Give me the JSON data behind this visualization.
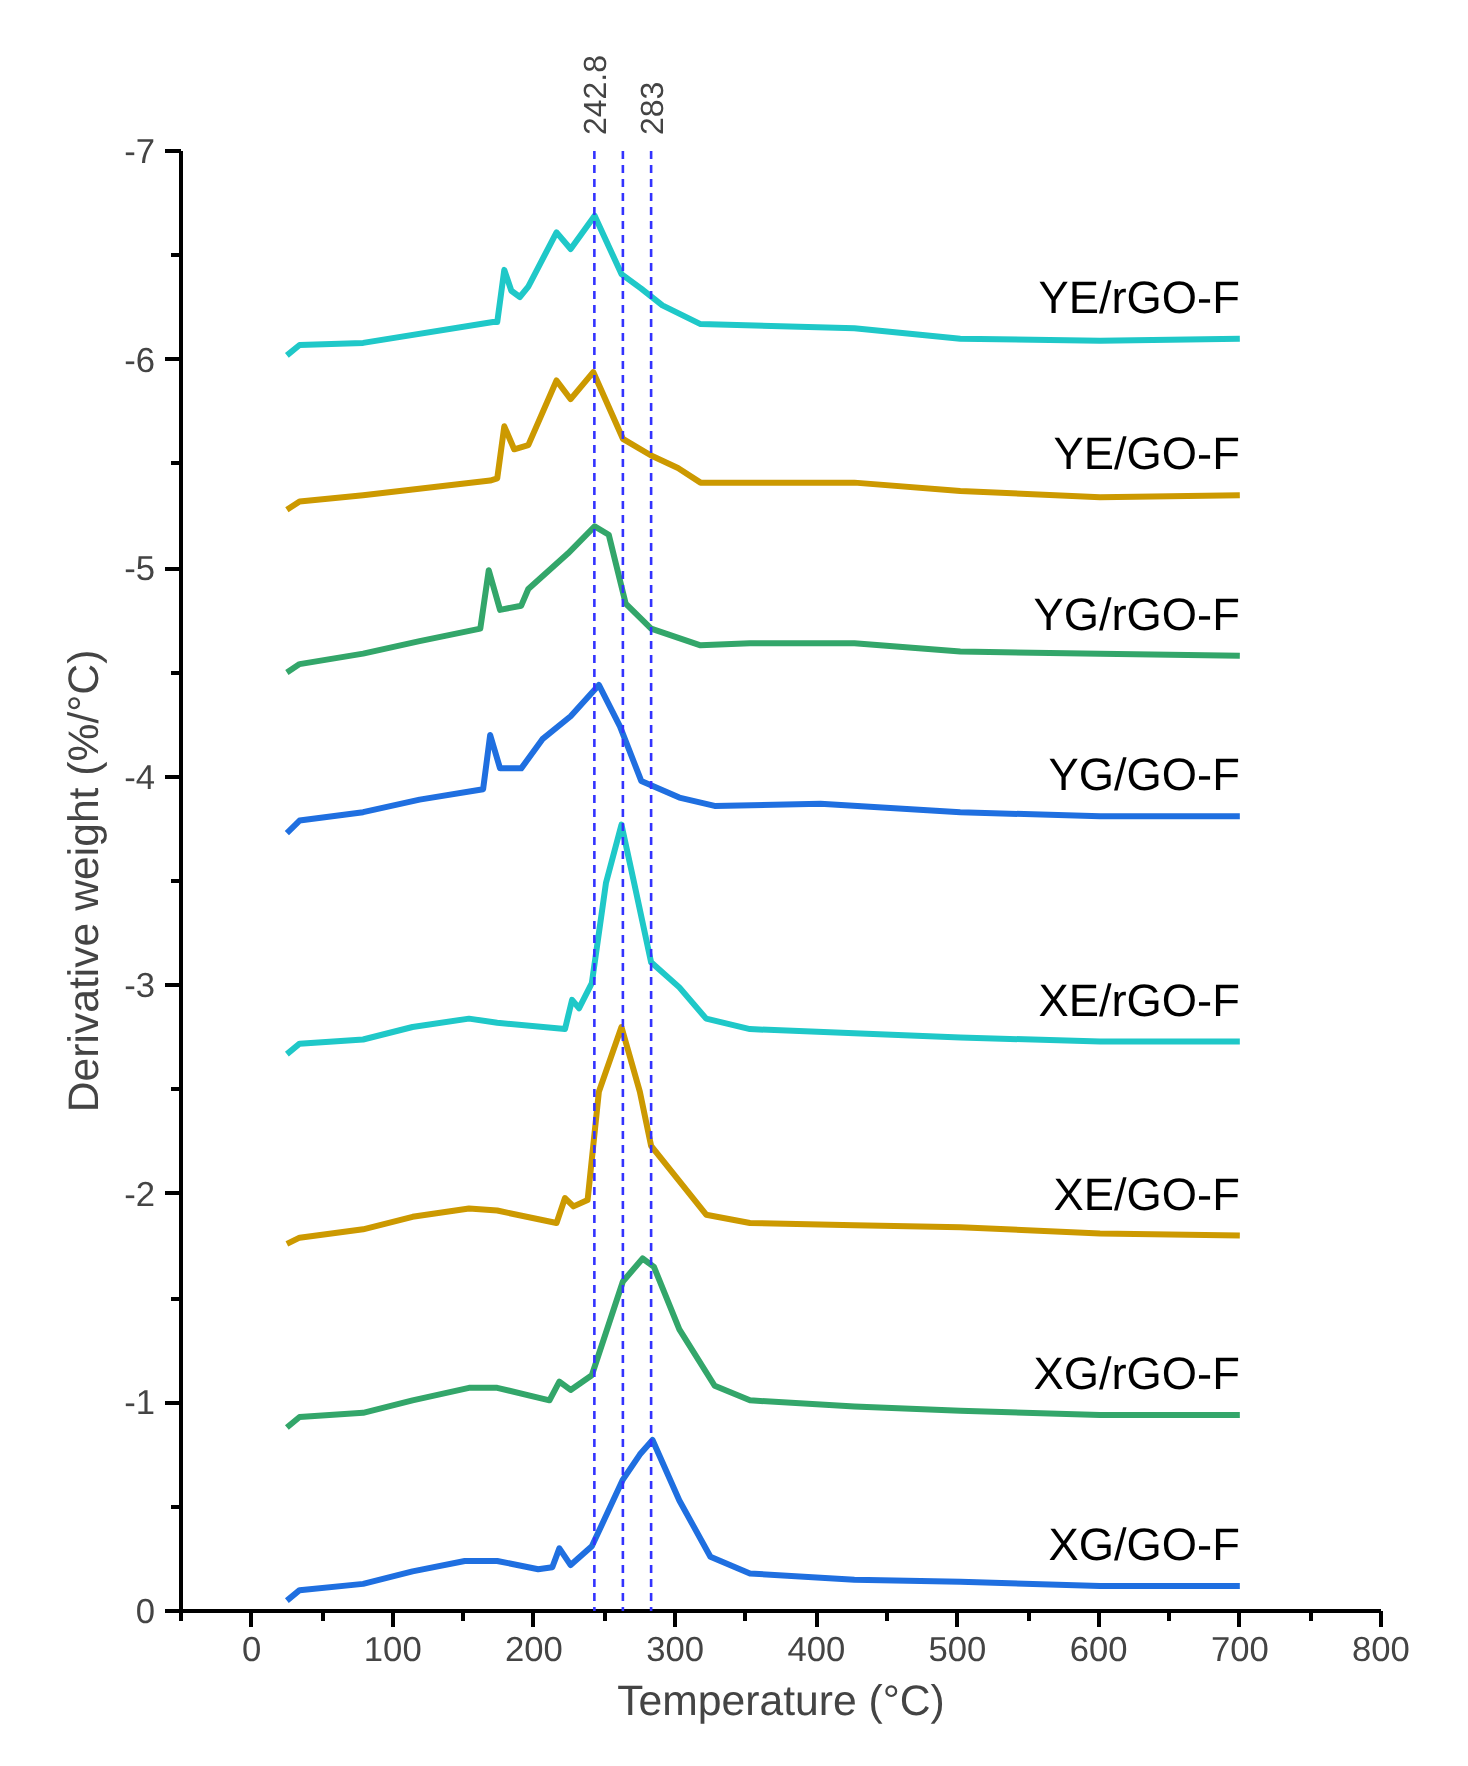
{
  "chart_data": {
    "type": "line",
    "xlabel": "Temperature (°C)",
    "ylabel": "Derivative weight (%/°C)",
    "xlim": [
      -50,
      800
    ],
    "ylim": [
      0,
      -7
    ],
    "xticks": [
      {
        "value": -50,
        "label": null
      },
      0,
      {
        "value": 50,
        "label": null
      },
      100,
      {
        "value": 150,
        "label": null
      },
      200,
      {
        "value": 250,
        "label": null
      },
      300,
      {
        "value": 350,
        "label": null
      },
      400,
      {
        "value": 450,
        "label": null
      },
      500,
      {
        "value": 550,
        "label": null
      },
      600,
      {
        "value": 650,
        "label": null
      },
      700,
      {
        "value": 750,
        "label": null
      },
      800
    ],
    "yticks": [
      0,
      {
        "value": -0.5,
        "label": null
      },
      -1,
      {
        "value": -1.5,
        "label": null
      },
      -2,
      {
        "value": -2.5,
        "label": null
      },
      -3,
      {
        "value": -3.5,
        "label": null
      },
      -4,
      {
        "value": -4.5,
        "label": null
      },
      -5,
      {
        "value": -5.5,
        "label": null
      },
      -6,
      {
        "value": -6.5,
        "label": null
      },
      -7
    ],
    "grid": false,
    "marker": "none",
    "line_style": "solid",
    "ref_lines": [
      {
        "axis": "x",
        "value": 242.8,
        "label": "242.8",
        "color": "#3333ff",
        "line_style": "dashed"
      },
      {
        "axis": "x",
        "value": 263,
        "label": null,
        "color": "#3333ff",
        "line_style": "dashed"
      },
      {
        "axis": "x",
        "value": 283,
        "label": "283",
        "color": "#3333ff",
        "line_style": "dashed"
      }
    ],
    "series": [
      {
        "name": "XG/GO-F",
        "color": "#1f6fe0",
        "x": [
          25,
          34,
          79,
          114,
          151,
          174,
          203,
          213,
          218,
          226,
          241,
          263,
          275,
          284,
          303,
          325,
          353,
          427,
          502,
          601,
          700
        ],
        "values": [
          -0.05,
          -0.1,
          -0.13,
          -0.19,
          -0.24,
          -0.24,
          -0.2,
          -0.21,
          -0.3,
          -0.22,
          -0.31,
          -0.63,
          -0.75,
          -0.82,
          -0.53,
          -0.26,
          -0.18,
          -0.15,
          -0.14,
          -0.12,
          -0.12
        ]
      },
      {
        "name": "XG/rGO-F",
        "color": "#33a66a",
        "x": [
          25,
          34,
          79,
          114,
          154,
          174,
          211,
          218,
          226,
          241,
          263,
          277,
          285,
          303,
          328,
          353,
          427,
          502,
          601,
          700
        ],
        "values": [
          -0.88,
          -0.93,
          -0.95,
          -1.01,
          -1.07,
          -1.07,
          -1.01,
          -1.1,
          -1.06,
          -1.13,
          -1.58,
          -1.69,
          -1.65,
          -1.35,
          -1.08,
          -1.01,
          -0.98,
          -0.96,
          -0.94,
          -0.94
        ]
      },
      {
        "name": "XE/GO-F",
        "color": "#cc9900",
        "x": [
          25,
          34,
          79,
          114,
          154,
          174,
          216,
          222,
          228,
          238,
          246,
          262,
          275,
          283,
          302,
          322,
          353,
          427,
          502,
          601,
          700
        ],
        "values": [
          -1.76,
          -1.79,
          -1.83,
          -1.89,
          -1.93,
          -1.92,
          -1.86,
          -1.98,
          -1.94,
          -1.97,
          -2.49,
          -2.8,
          -2.49,
          -2.23,
          -2.07,
          -1.9,
          -1.86,
          -1.85,
          -1.84,
          -1.81,
          -1.8
        ]
      },
      {
        "name": "XE/rGO-F",
        "color": "#1fc8c8",
        "x": [
          25,
          34,
          79,
          114,
          154,
          174,
          222,
          227,
          232,
          241,
          251,
          262,
          271,
          283,
          303,
          322,
          353,
          427,
          502,
          601,
          700
        ],
        "values": [
          -2.67,
          -2.72,
          -2.74,
          -2.8,
          -2.84,
          -2.82,
          -2.79,
          -2.93,
          -2.89,
          -3.01,
          -3.49,
          -3.77,
          -3.49,
          -3.11,
          -2.99,
          -2.84,
          -2.79,
          -2.77,
          -2.75,
          -2.73,
          -2.73
        ]
      },
      {
        "name": "YG/GO-F",
        "color": "#1f6fe0",
        "x": [
          25,
          34,
          79,
          119,
          164,
          169,
          176,
          191,
          206,
          226,
          246,
          261,
          276,
          303,
          328,
          403,
          502,
          601,
          700
        ],
        "values": [
          -3.73,
          -3.79,
          -3.83,
          -3.89,
          -3.94,
          -4.2,
          -4.04,
          -4.04,
          -4.18,
          -4.29,
          -4.44,
          -4.24,
          -3.98,
          -3.9,
          -3.86,
          -3.87,
          -3.83,
          -3.81,
          -3.81
        ]
      },
      {
        "name": "YG/rGO-F",
        "color": "#33a66a",
        "x": [
          25,
          34,
          79,
          119,
          162,
          168,
          176,
          191,
          196,
          224,
          243,
          253,
          265,
          283,
          318,
          353,
          427,
          502,
          601,
          700
        ],
        "values": [
          -4.5,
          -4.54,
          -4.59,
          -4.65,
          -4.71,
          -4.99,
          -4.8,
          -4.82,
          -4.9,
          -5.07,
          -5.2,
          -5.16,
          -4.83,
          -4.71,
          -4.63,
          -4.64,
          -4.64,
          -4.6,
          -4.59,
          -4.58
        ]
      },
      {
        "name": "YE/GO-F",
        "color": "#cc9900",
        "x": [
          25,
          34,
          79,
          169,
          174,
          179,
          186,
          196,
          216,
          226,
          242,
          263,
          283,
          302,
          318,
          427,
          502,
          601,
          700
        ],
        "values": [
          -5.28,
          -5.32,
          -5.35,
          -5.42,
          -5.43,
          -5.68,
          -5.57,
          -5.59,
          -5.9,
          -5.81,
          -5.94,
          -5.62,
          -5.54,
          -5.48,
          -5.41,
          -5.41,
          -5.37,
          -5.34,
          -5.35
        ]
      },
      {
        "name": "YE/rGO-F",
        "color": "#1fc8c8",
        "x": [
          25,
          34,
          79,
          171,
          174,
          179,
          184,
          190,
          196,
          216,
          226,
          243,
          262,
          276,
          291,
          318,
          427,
          502,
          601,
          700
        ],
        "values": [
          -6.02,
          -6.07,
          -6.08,
          -6.18,
          -6.18,
          -6.43,
          -6.33,
          -6.3,
          -6.35,
          -6.61,
          -6.53,
          -6.69,
          -6.41,
          -6.34,
          -6.26,
          -6.17,
          -6.15,
          -6.1,
          -6.09,
          -6.1
        ]
      }
    ]
  }
}
